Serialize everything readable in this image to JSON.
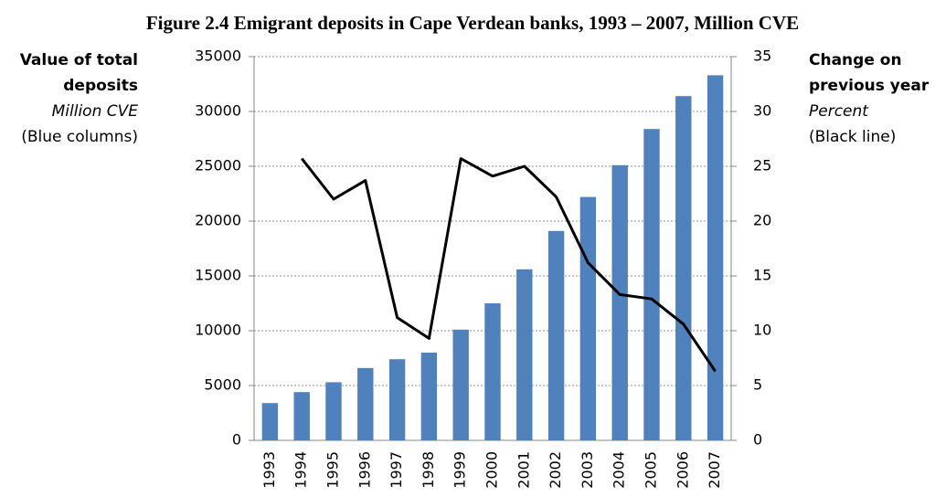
{
  "chart_data": {
    "type": "bar_line",
    "title": "Figure 2.4 Emigrant deposits in Cape Verdean banks, 1993 – 2007, Million CVE",
    "y_label": [
      "Value of total",
      "deposits"
    ],
    "y_unit": "Million CVE",
    "y_note": "(Blue columns)",
    "y2_label": [
      "Change on",
      "previous year"
    ],
    "y2_unit": "Percent",
    "y2_note": "(Black line)",
    "categories": [
      "1993",
      "1994",
      "1995",
      "1996",
      "1997",
      "1998",
      "1999",
      "2000",
      "2001",
      "2002",
      "2003",
      "2004",
      "2005",
      "2006",
      "2007"
    ],
    "series": [
      {
        "name": "Value of total deposits",
        "type": "bar",
        "color": "#4f81bd",
        "axis": "y",
        "values": [
          3400,
          4400,
          5300,
          6600,
          7400,
          8000,
          10100,
          12500,
          15600,
          19100,
          22200,
          25100,
          28400,
          31400,
          33300
        ]
      },
      {
        "name": "Change on previous year",
        "type": "line",
        "color": "#000000",
        "axis": "y2",
        "values": [
          null,
          25.7,
          22.0,
          23.7,
          11.2,
          9.3,
          25.7,
          24.1,
          25.0,
          22.2,
          16.2,
          13.3,
          12.9,
          10.6,
          6.3
        ]
      }
    ],
    "ylim": [
      0,
      35000
    ],
    "yticks": [
      0,
      5000,
      10000,
      15000,
      20000,
      25000,
      30000,
      35000
    ],
    "y2lim": [
      0,
      35
    ],
    "y2ticks": [
      0,
      5,
      10,
      15,
      20,
      25,
      30,
      35
    ],
    "grid": true
  }
}
